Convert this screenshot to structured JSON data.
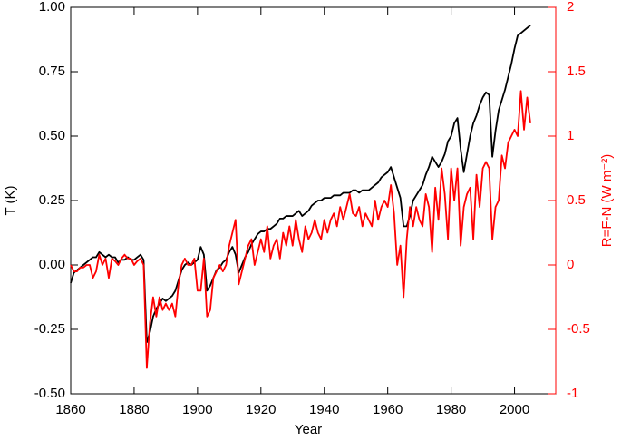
{
  "chart_data": {
    "type": "line",
    "xlabel": "Year",
    "ylabel": "T (K)",
    "y2label": "R=F-N (W m⁻²)",
    "xlim": [
      1860,
      2013
    ],
    "xticks": [
      1860,
      1880,
      1900,
      1920,
      1940,
      1960,
      1980,
      2000
    ],
    "ylim": [
      -0.5,
      1.0
    ],
    "yticks": [
      {
        "value": -0.5,
        "label": "-0.50"
      },
      {
        "value": -0.25,
        "label": "-0.25"
      },
      {
        "value": 0,
        "label": "0.00"
      },
      {
        "value": 0.25,
        "label": "0.25"
      },
      {
        "value": 0.5,
        "label": "0.50"
      },
      {
        "value": 0.75,
        "label": "0.75"
      },
      {
        "value": 1,
        "label": "1.00"
      }
    ],
    "y2lim": [
      -1,
      2
    ],
    "y2ticks": [
      -1,
      -0.5,
      0,
      0.5,
      1,
      1.5,
      2
    ],
    "y2color": "#ff0000",
    "grid": false,
    "x": [
      1860,
      1861,
      1862,
      1863,
      1864,
      1865,
      1866,
      1867,
      1868,
      1869,
      1870,
      1871,
      1872,
      1873,
      1874,
      1875,
      1876,
      1877,
      1878,
      1879,
      1880,
      1881,
      1882,
      1883,
      1884,
      1885,
      1886,
      1887,
      1888,
      1889,
      1890,
      1891,
      1892,
      1893,
      1894,
      1895,
      1896,
      1897,
      1898,
      1899,
      1900,
      1901,
      1902,
      1903,
      1904,
      1905,
      1906,
      1907,
      1908,
      1909,
      1910,
      1911,
      1912,
      1913,
      1914,
      1915,
      1916,
      1917,
      1918,
      1919,
      1920,
      1921,
      1922,
      1923,
      1924,
      1925,
      1926,
      1927,
      1928,
      1929,
      1930,
      1931,
      1932,
      1933,
      1934,
      1935,
      1936,
      1937,
      1938,
      1939,
      1940,
      1941,
      1942,
      1943,
      1944,
      1945,
      1946,
      1947,
      1948,
      1949,
      1950,
      1951,
      1952,
      1953,
      1954,
      1955,
      1956,
      1957,
      1958,
      1959,
      1960,
      1961,
      1962,
      1963,
      1964,
      1965,
      1966,
      1967,
      1968,
      1969,
      1970,
      1971,
      1972,
      1973,
      1974,
      1975,
      1976,
      1977,
      1978,
      1979,
      1980,
      1981,
      1982,
      1983,
      1984,
      1985,
      1986,
      1987,
      1988,
      1989,
      1990,
      1991,
      1992,
      1993,
      1994,
      1995,
      1996,
      1997,
      1998,
      1999,
      2000,
      2001,
      2002,
      2003,
      2004,
      2005
    ],
    "series": [
      {
        "color": "#000000",
        "axis": "y",
        "values": [
          -0.07,
          -0.03,
          -0.02,
          -0.01,
          0.0,
          0.01,
          0.02,
          0.03,
          0.03,
          0.05,
          0.04,
          0.03,
          0.04,
          0.03,
          0.03,
          0.01,
          0.02,
          0.02,
          0.03,
          0.02,
          0.02,
          0.03,
          0.04,
          0.02,
          -0.3,
          -0.26,
          -0.2,
          -0.17,
          -0.15,
          -0.13,
          -0.14,
          -0.13,
          -0.12,
          -0.1,
          -0.06,
          -0.02,
          0.0,
          0.01,
          0.0,
          0.01,
          0.02,
          0.07,
          0.04,
          -0.1,
          -0.08,
          -0.05,
          -0.02,
          -0.01,
          0.01,
          0.02,
          0.05,
          0.07,
          0.04,
          -0.03,
          0.0,
          0.03,
          0.05,
          0.08,
          0.1,
          0.12,
          0.13,
          0.13,
          0.14,
          0.14,
          0.15,
          0.16,
          0.18,
          0.18,
          0.19,
          0.19,
          0.19,
          0.2,
          0.21,
          0.19,
          0.2,
          0.21,
          0.23,
          0.24,
          0.25,
          0.25,
          0.26,
          0.26,
          0.26,
          0.27,
          0.27,
          0.27,
          0.28,
          0.28,
          0.28,
          0.29,
          0.29,
          0.28,
          0.29,
          0.29,
          0.29,
          0.3,
          0.31,
          0.32,
          0.34,
          0.35,
          0.36,
          0.38,
          0.34,
          0.3,
          0.26,
          0.15,
          0.15,
          0.19,
          0.25,
          0.27,
          0.29,
          0.31,
          0.35,
          0.38,
          0.42,
          0.4,
          0.38,
          0.4,
          0.43,
          0.48,
          0.5,
          0.55,
          0.57,
          0.45,
          0.36,
          0.43,
          0.5,
          0.55,
          0.58,
          0.62,
          0.65,
          0.67,
          0.66,
          0.42,
          0.52,
          0.6,
          0.64,
          0.68,
          0.73,
          0.78,
          0.84,
          0.89,
          0.9,
          0.91,
          0.92,
          0.93
        ]
      },
      {
        "color": "#ff0000",
        "axis": "y2",
        "values": [
          0.0,
          -0.05,
          -0.05,
          -0.02,
          -0.02,
          0.0,
          0.0,
          -0.1,
          -0.05,
          0.08,
          0.0,
          0.05,
          -0.1,
          0.05,
          0.03,
          0.0,
          0.05,
          0.08,
          0.05,
          0.05,
          0.0,
          0.03,
          0.05,
          0.0,
          -0.8,
          -0.45,
          -0.25,
          -0.4,
          -0.25,
          -0.35,
          -0.3,
          -0.35,
          -0.3,
          -0.4,
          -0.15,
          0.0,
          0.05,
          0.0,
          0.0,
          0.05,
          -0.2,
          -0.2,
          0.05,
          -0.4,
          -0.35,
          -0.1,
          -0.05,
          0.0,
          -0.05,
          0.0,
          0.15,
          0.25,
          0.35,
          -0.15,
          -0.05,
          0.05,
          0.15,
          0.2,
          0.0,
          0.1,
          0.2,
          0.1,
          0.3,
          0.05,
          0.15,
          0.2,
          0.05,
          0.25,
          0.15,
          0.3,
          0.15,
          0.35,
          0.2,
          0.1,
          0.3,
          0.2,
          0.25,
          0.35,
          0.25,
          0.2,
          0.35,
          0.25,
          0.35,
          0.4,
          0.3,
          0.45,
          0.35,
          0.45,
          0.55,
          0.4,
          0.38,
          0.45,
          0.3,
          0.4,
          0.35,
          0.3,
          0.5,
          0.35,
          0.45,
          0.5,
          0.45,
          0.62,
          0.4,
          0.0,
          0.15,
          -0.25,
          0.2,
          0.45,
          0.3,
          0.45,
          0.35,
          0.3,
          0.55,
          0.45,
          0.1,
          0.6,
          0.35,
          0.75,
          0.55,
          0.2,
          0.75,
          0.5,
          0.75,
          0.15,
          0.45,
          0.55,
          0.6,
          0.2,
          0.7,
          0.45,
          0.75,
          0.8,
          0.75,
          0.2,
          0.45,
          0.5,
          0.85,
          0.75,
          0.95,
          1.0,
          1.05,
          1.0,
          1.35,
          1.05,
          1.3,
          1.1
        ]
      }
    ]
  }
}
